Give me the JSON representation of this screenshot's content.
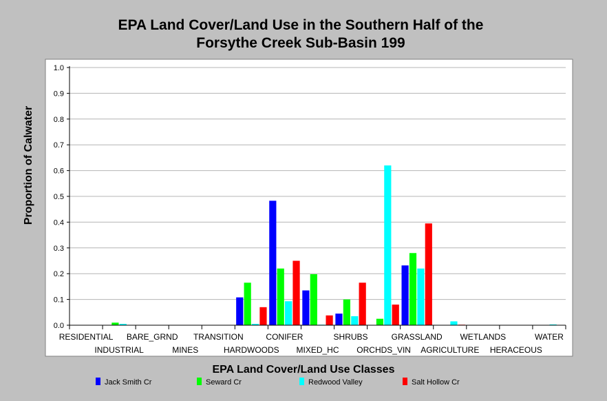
{
  "chart_data": {
    "type": "bar",
    "title_line1": "EPA Land Cover/Land Use in the Southern Half of the",
    "title_line2": "Forsythe Creek Sub-Basin 199",
    "xlabel": "EPA Land Cover/Land Use Classes",
    "ylabel": "Proportion of Calwater",
    "ylim": [
      0,
      1.0
    ],
    "yticks": [
      "0.0",
      "0.1",
      "0.2",
      "0.3",
      "0.4",
      "0.5",
      "0.6",
      "0.7",
      "0.8",
      "0.9",
      "1.0"
    ],
    "grid": true,
    "legend_position": "bottom",
    "categories": [
      "RESIDENTIAL",
      "INDUSTRIAL",
      "BARE_GRND",
      "MINES",
      "TRANSITION",
      "HARDWOODS",
      "CONIFER",
      "MIXED_HC",
      "SHRUBS",
      "ORCHDS_VIN",
      "GRASSLAND",
      "AGRICULTURE",
      "WETLANDS",
      "HERACEOUS",
      "WATER"
    ],
    "series": [
      {
        "name": "Jack Smith Cr",
        "color": "#0000ff",
        "values": [
          0,
          0,
          0,
          0,
          0,
          0.108,
          0.483,
          0.135,
          0.045,
          0,
          0.232,
          0,
          0,
          0,
          0
        ]
      },
      {
        "name": "Seward Cr",
        "color": "#00ff00",
        "values": [
          0,
          0.01,
          0,
          0,
          0,
          0.165,
          0.22,
          0.198,
          0.1,
          0.025,
          0.28,
          0,
          0,
          0,
          0
        ]
      },
      {
        "name": "Redwood Valley",
        "color": "#00ffff",
        "values": [
          0,
          0.005,
          0,
          0,
          0,
          0.005,
          0.093,
          0.002,
          0.035,
          0.62,
          0.22,
          0.015,
          0,
          0,
          0.003
        ]
      },
      {
        "name": "Salt Hollow Cr",
        "color": "#ff0000",
        "values": [
          0,
          0,
          0,
          0,
          0,
          0.07,
          0.25,
          0.038,
          0.165,
          0.08,
          0.395,
          0.002,
          0,
          0,
          0
        ]
      }
    ]
  }
}
